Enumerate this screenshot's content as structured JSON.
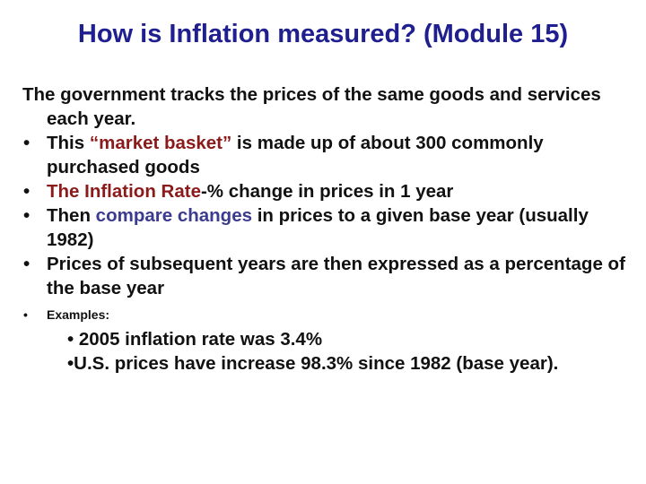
{
  "title": "How is Inflation measured? (Module 15)",
  "intro": "The government tracks the prices of the same goods and services each year.",
  "bullets": [
    {
      "pre": "This ",
      "highlight": "“market basket”",
      "post": " is made up of about 300 commonly purchased goods"
    },
    {
      "pre": "",
      "highlight": "The Inflation Rate",
      "post": "-% change in prices in 1 year"
    },
    {
      "pre": "Then ",
      "highlight": "compare changes",
      "post": " in prices to a given base year (usually 1982)"
    },
    {
      "text": "Prices of subsequent years are then expressed as a percentage of the base year"
    }
  ],
  "examples_label": "Examples:",
  "examples": [
    "• 2005 inflation rate was 3.4%",
    "•U.S. prices have increase 98.3% since 1982 (base year)."
  ],
  "colors": {
    "title": "#1f1f8f",
    "highlight_red": "#8b1a1a",
    "highlight_blue": "#3b3b8f"
  }
}
